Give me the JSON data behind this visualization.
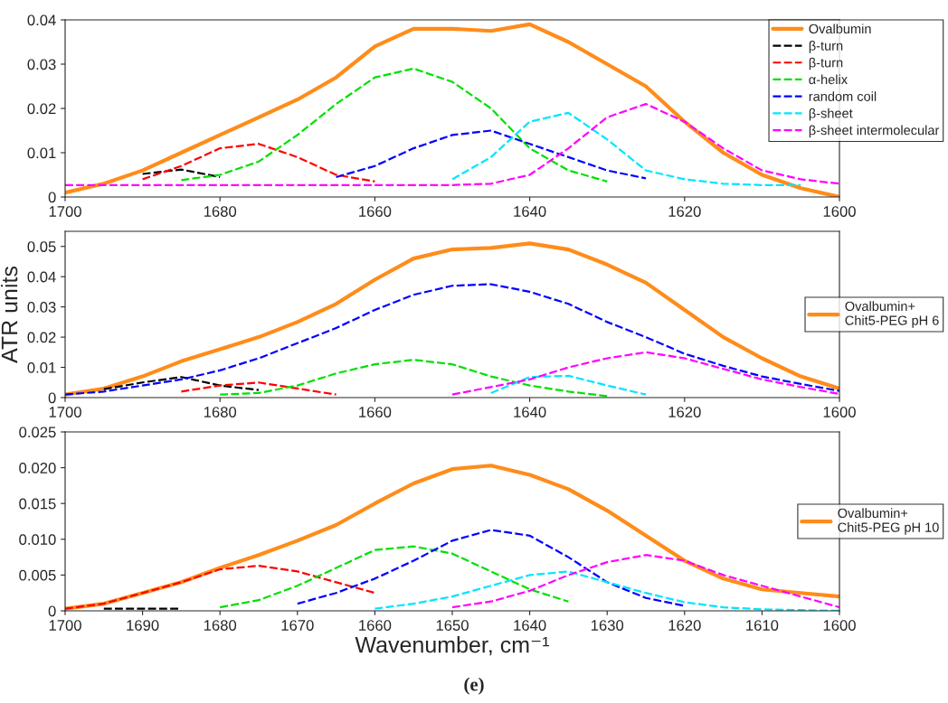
{
  "chart_data": [
    {
      "type": "line",
      "x": [
        1700,
        1695,
        1690,
        1685,
        1680,
        1675,
        1670,
        1665,
        1660,
        1655,
        1650,
        1645,
        1640,
        1635,
        1630,
        1625,
        1620,
        1615,
        1610,
        1605,
        1600
      ],
      "xlim": [
        1700,
        1600
      ],
      "xticks": [
        1700,
        1680,
        1660,
        1640,
        1620,
        1600
      ],
      "ylim": [
        0,
        0.04
      ],
      "yticks": [
        0,
        0.01,
        0.02,
        0.03,
        0.04
      ],
      "grid": false,
      "legend": "top right",
      "marker": "none",
      "series": [
        {
          "name": "Ovalbumin",
          "color": "#ff8c1a",
          "line_style": "solid",
          "values": [
            0.001,
            0.003,
            0.006,
            0.01,
            0.014,
            0.018,
            0.022,
            0.027,
            0.034,
            0.038,
            0.038,
            0.0375,
            0.039,
            0.035,
            0.03,
            0.025,
            0.017,
            0.01,
            0.005,
            0.002,
            0.0
          ]
        },
        {
          "name": "β-turn",
          "color": "#000000",
          "line_style": "dashed",
          "values": [
            null,
            null,
            0.0052,
            0.0062,
            0.0045,
            null,
            null,
            null,
            null,
            null,
            null,
            null,
            null,
            null,
            null,
            null,
            null,
            null,
            null,
            null,
            null
          ]
        },
        {
          "name": "β-turn",
          "color": "#ff0000",
          "line_style": "dashed",
          "values": [
            null,
            null,
            0.004,
            0.007,
            0.011,
            0.012,
            0.009,
            0.005,
            0.0035,
            null,
            null,
            null,
            null,
            null,
            null,
            null,
            null,
            null,
            null,
            null,
            null
          ]
        },
        {
          "name": "α-helix",
          "color": "#00e000",
          "line_style": "dashed",
          "values": [
            null,
            null,
            null,
            0.0038,
            0.005,
            0.008,
            0.014,
            0.021,
            0.027,
            0.029,
            0.026,
            0.02,
            0.011,
            0.006,
            0.0035,
            null,
            null,
            null,
            null,
            null,
            null
          ]
        },
        {
          "name": "random coil",
          "color": "#0000ff",
          "line_style": "dashed",
          "values": [
            null,
            null,
            null,
            null,
            null,
            null,
            null,
            0.0045,
            0.007,
            0.011,
            0.014,
            0.015,
            0.012,
            0.009,
            0.006,
            0.0042,
            null,
            null,
            null,
            null,
            null
          ]
        },
        {
          "name": "β-sheet",
          "color": "#00e5ff",
          "line_style": "dashed",
          "values": [
            null,
            null,
            null,
            null,
            null,
            null,
            null,
            null,
            null,
            null,
            0.004,
            0.009,
            0.017,
            0.019,
            0.013,
            0.006,
            0.004,
            0.003,
            0.0027,
            0.0027,
            null
          ]
        },
        {
          "name": "β-sheet intermolecular",
          "color": "#ff00ff",
          "line_style": "dashed",
          "values": [
            0.0027,
            0.0027,
            0.0027,
            0.0027,
            0.0027,
            0.0027,
            0.0027,
            0.0027,
            0.0027,
            0.0027,
            0.0027,
            0.003,
            0.005,
            0.011,
            0.018,
            0.021,
            0.017,
            0.011,
            0.006,
            0.004,
            0.003
          ]
        }
      ]
    },
    {
      "type": "line",
      "x": [
        1700,
        1695,
        1690,
        1685,
        1680,
        1675,
        1670,
        1665,
        1660,
        1655,
        1650,
        1645,
        1640,
        1635,
        1630,
        1625,
        1620,
        1615,
        1610,
        1605,
        1600
      ],
      "xlim": [
        1700,
        1600
      ],
      "xticks": [
        1700,
        1680,
        1660,
        1640,
        1620,
        1600
      ],
      "ylim": [
        0,
        0.055
      ],
      "yticks": [
        0,
        0.01,
        0.02,
        0.03,
        0.04,
        0.05
      ],
      "ylabel": "ATR units",
      "grid": false,
      "legend": "right",
      "marker": "none",
      "series": [
        {
          "name": "Ovalbumin+\nChit5-PEG pH 6",
          "color": "#ff8c1a",
          "line_style": "solid",
          "values": [
            0.001,
            0.003,
            0.007,
            0.012,
            0.016,
            0.02,
            0.025,
            0.031,
            0.039,
            0.046,
            0.049,
            0.0495,
            0.051,
            0.049,
            0.044,
            0.038,
            0.029,
            0.02,
            0.013,
            0.007,
            0.003
          ]
        },
        {
          "color": "#000000",
          "line_style": "dashed",
          "values": [
            null,
            0.0028,
            0.005,
            0.0068,
            0.004,
            0.0025,
            null,
            null,
            null,
            null,
            null,
            null,
            null,
            null,
            null,
            null,
            null,
            null,
            null,
            null,
            null
          ]
        },
        {
          "color": "#ff0000",
          "line_style": "dashed",
          "values": [
            null,
            null,
            null,
            0.002,
            0.004,
            0.005,
            0.003,
            0.001,
            null,
            null,
            null,
            null,
            null,
            null,
            null,
            null,
            null,
            null,
            null,
            null,
            null
          ]
        },
        {
          "color": "#00e000",
          "line_style": "dashed",
          "values": [
            null,
            null,
            null,
            null,
            0.001,
            0.0015,
            0.004,
            0.008,
            0.011,
            0.0125,
            0.011,
            0.007,
            0.004,
            0.002,
            0.0005,
            null,
            null,
            null,
            null,
            null,
            null
          ]
        },
        {
          "color": "#0000ff",
          "line_style": "dashed",
          "values": [
            0.001,
            0.002,
            0.004,
            0.006,
            0.009,
            0.013,
            0.018,
            0.023,
            0.029,
            0.034,
            0.037,
            0.0375,
            0.035,
            0.031,
            0.025,
            0.02,
            0.0145,
            0.0105,
            0.007,
            0.0045,
            0.0022
          ]
        },
        {
          "color": "#00e5ff",
          "line_style": "dashed",
          "values": [
            null,
            null,
            null,
            null,
            null,
            null,
            null,
            null,
            null,
            null,
            null,
            0.0015,
            0.0068,
            0.0072,
            0.004,
            0.001,
            null,
            null,
            null,
            null,
            null
          ]
        },
        {
          "color": "#ff00ff",
          "line_style": "dashed",
          "values": [
            null,
            null,
            null,
            null,
            null,
            null,
            null,
            null,
            null,
            null,
            0.001,
            0.0035,
            0.006,
            0.01,
            0.013,
            0.015,
            0.013,
            0.0095,
            0.006,
            0.0035,
            0.0012
          ]
        }
      ]
    },
    {
      "type": "line",
      "x": [
        1700,
        1695,
        1690,
        1685,
        1680,
        1675,
        1670,
        1665,
        1660,
        1655,
        1650,
        1645,
        1640,
        1635,
        1630,
        1625,
        1620,
        1615,
        1610,
        1605,
        1600
      ],
      "xlim": [
        1700,
        1600
      ],
      "xticks": [
        1700,
        1690,
        1680,
        1670,
        1660,
        1650,
        1640,
        1630,
        1620,
        1610,
        1600
      ],
      "ylim": [
        0,
        0.025
      ],
      "yticks": [
        0,
        0.005,
        {
          "value": 0.01,
          "label": "0.010"
        },
        {
          "value": 0.015,
          "label": "0.015"
        },
        {
          "value": 0.02,
          "label": "0.020"
        },
        {
          "value": 0.025,
          "label": "0.025"
        }
      ],
      "xlabel": "Wavenumber, cm⁻¹",
      "annotations": [
        "(e)"
      ],
      "grid": false,
      "legend": "right",
      "marker": "none",
      "series": [
        {
          "name": "Ovalbumin+\nChit5-PEG pH 10",
          "color": "#ff8c1a",
          "line_style": "solid",
          "values": [
            0.0003,
            0.001,
            0.0025,
            0.004,
            0.006,
            0.0078,
            0.0098,
            0.012,
            0.015,
            0.0178,
            0.0198,
            0.0203,
            0.019,
            0.017,
            0.014,
            0.0105,
            0.007,
            0.0045,
            0.003,
            0.0025,
            0.002
          ]
        },
        {
          "color": "#000000",
          "line_style": "dashed",
          "values": [
            null,
            0.0003,
            0.0003,
            0.0003,
            null,
            null,
            null,
            null,
            null,
            null,
            null,
            null,
            null,
            null,
            null,
            null,
            null,
            null,
            null,
            null,
            null
          ]
        },
        {
          "color": "#ff0000",
          "line_style": "dashed",
          "values": [
            0.0003,
            0.001,
            0.0025,
            0.004,
            0.0058,
            0.0063,
            0.0055,
            0.004,
            0.0025,
            null,
            null,
            null,
            null,
            null,
            null,
            null,
            null,
            null,
            null,
            null,
            null
          ]
        },
        {
          "color": "#00e000",
          "line_style": "dashed",
          "values": [
            null,
            null,
            null,
            null,
            0.0005,
            0.0015,
            0.0035,
            0.006,
            0.0085,
            0.009,
            0.008,
            0.0055,
            0.003,
            0.0013,
            null,
            null,
            null,
            null,
            null,
            null,
            null
          ]
        },
        {
          "color": "#0000ff",
          "line_style": "dashed",
          "values": [
            null,
            null,
            null,
            null,
            null,
            null,
            0.001,
            0.0025,
            0.0045,
            0.007,
            0.0098,
            0.0113,
            0.0105,
            0.0075,
            0.004,
            0.0018,
            0.0007,
            null,
            null,
            null,
            null
          ]
        },
        {
          "color": "#00e5ff",
          "line_style": "dashed",
          "values": [
            null,
            null,
            null,
            null,
            null,
            null,
            null,
            null,
            0.0003,
            0.001,
            0.002,
            0.0035,
            0.005,
            0.0055,
            0.004,
            0.0025,
            0.0012,
            0.0005,
            0.0002,
            0.0001,
            0
          ]
        },
        {
          "color": "#ff00ff",
          "line_style": "dashed",
          "values": [
            null,
            null,
            null,
            null,
            null,
            null,
            null,
            null,
            null,
            null,
            0.0005,
            0.0013,
            0.0028,
            0.005,
            0.0068,
            0.0078,
            0.007,
            0.005,
            0.0035,
            0.002,
            0.0005
          ]
        }
      ]
    }
  ]
}
